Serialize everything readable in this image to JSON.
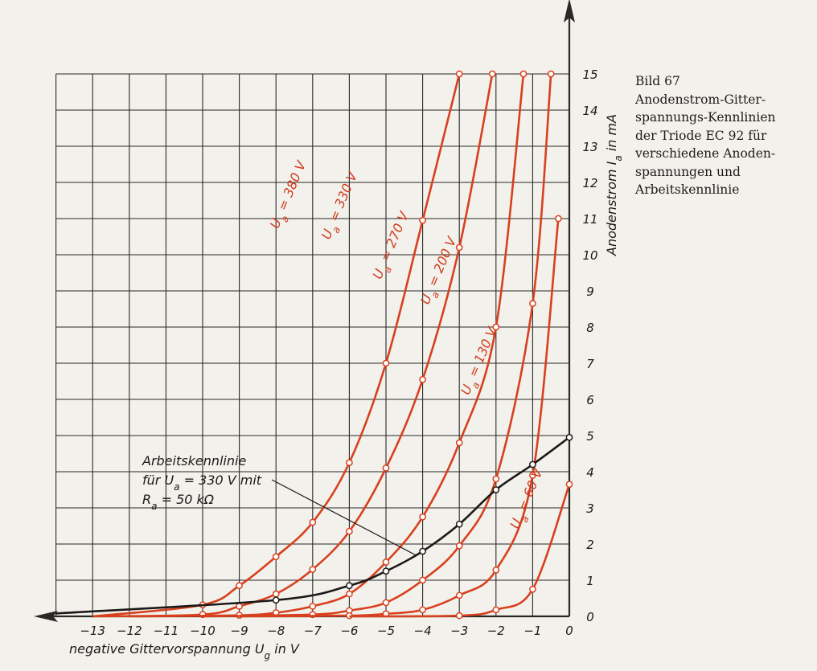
{
  "caption": {
    "figure_number": "Bild 67",
    "lines": [
      "Anodenstrom-Gitter-",
      "spannungs-Kennlinien",
      "der Triode EC 92 für",
      "verschiedene Anoden-",
      "spannungen und",
      "Arbeitskennlinie"
    ]
  },
  "colors": {
    "curves": "#d8401e",
    "work_line": "#1c1a18",
    "grid": "#2a2826",
    "paper": "#f3f1ec"
  },
  "chart_data": {
    "type": "line",
    "xlabel": "negative Gittervorspannung U_g in V",
    "ylabel": "Anodenstrom I_a in mA",
    "xlim": [
      -14,
      0
    ],
    "ylim": [
      0,
      15
    ],
    "x_ticks": [
      -13,
      -12,
      -11,
      -10,
      -9,
      -8,
      -7,
      -6,
      -5,
      -4,
      -3,
      -2,
      -1,
      0
    ],
    "y_ticks": [
      0,
      1,
      2,
      3,
      4,
      5,
      6,
      7,
      8,
      9,
      10,
      11,
      12,
      13,
      14,
      15
    ],
    "grid": true,
    "series": [
      {
        "name": "U_a = 380 V",
        "x": [
          -10,
          -9,
          -8,
          -7,
          -6,
          -5,
          -4,
          -3
        ],
        "y": [
          0.32,
          0.85,
          1.65,
          2.6,
          4.25,
          7.0,
          10.95,
          15.0
        ]
      },
      {
        "name": "U_a = 330 V",
        "x": [
          -10,
          -9,
          -8,
          -7,
          -6,
          -5,
          -4,
          -3,
          -2.1
        ],
        "y": [
          0.05,
          0.28,
          0.62,
          1.3,
          2.35,
          4.1,
          6.55,
          10.2,
          15.0
        ]
      },
      {
        "name": "U_a = 270 V",
        "x": [
          -9,
          -8,
          -7,
          -6,
          -5,
          -4,
          -3,
          -2,
          -1.25
        ],
        "y": [
          0.03,
          0.1,
          0.28,
          0.62,
          1.5,
          2.75,
          4.8,
          8.0,
          15.0
        ]
      },
      {
        "name": "U_a = 200 V",
        "x": [
          -7,
          -6,
          -5,
          -4,
          -3,
          -2,
          -1,
          -0.5
        ],
        "y": [
          0.05,
          0.16,
          0.38,
          1.0,
          1.95,
          3.8,
          8.65,
          15.0
        ]
      },
      {
        "name": "U_a = 130 V",
        "x": [
          -6,
          -5,
          -4,
          -3,
          -2,
          -1,
          -0.3
        ],
        "y": [
          0.02,
          0.07,
          0.18,
          0.58,
          1.28,
          3.9,
          11.0
        ]
      },
      {
        "name": "U_a = 60 V",
        "x": [
          -3,
          -2,
          -1,
          0
        ],
        "y": [
          0.02,
          0.18,
          0.75,
          3.65
        ]
      }
    ],
    "work_line": {
      "x": [
        -8,
        -6,
        -5,
        -4,
        -3,
        -2,
        -1,
        0
      ],
      "y": [
        0.45,
        0.85,
        1.25,
        1.8,
        2.55,
        3.5,
        4.2,
        4.95
      ]
    },
    "work_line_label": [
      "Arbeitskennlinie",
      "für U_a = 330 V mit",
      "R_a = 50 kΩ"
    ],
    "curve_labels": [
      "U_a = 380 V",
      "U_a = 330 V",
      "U_a = 270 V",
      "U_a = 200 V",
      "U_a = 130 V",
      "U_a = 60 V"
    ]
  }
}
